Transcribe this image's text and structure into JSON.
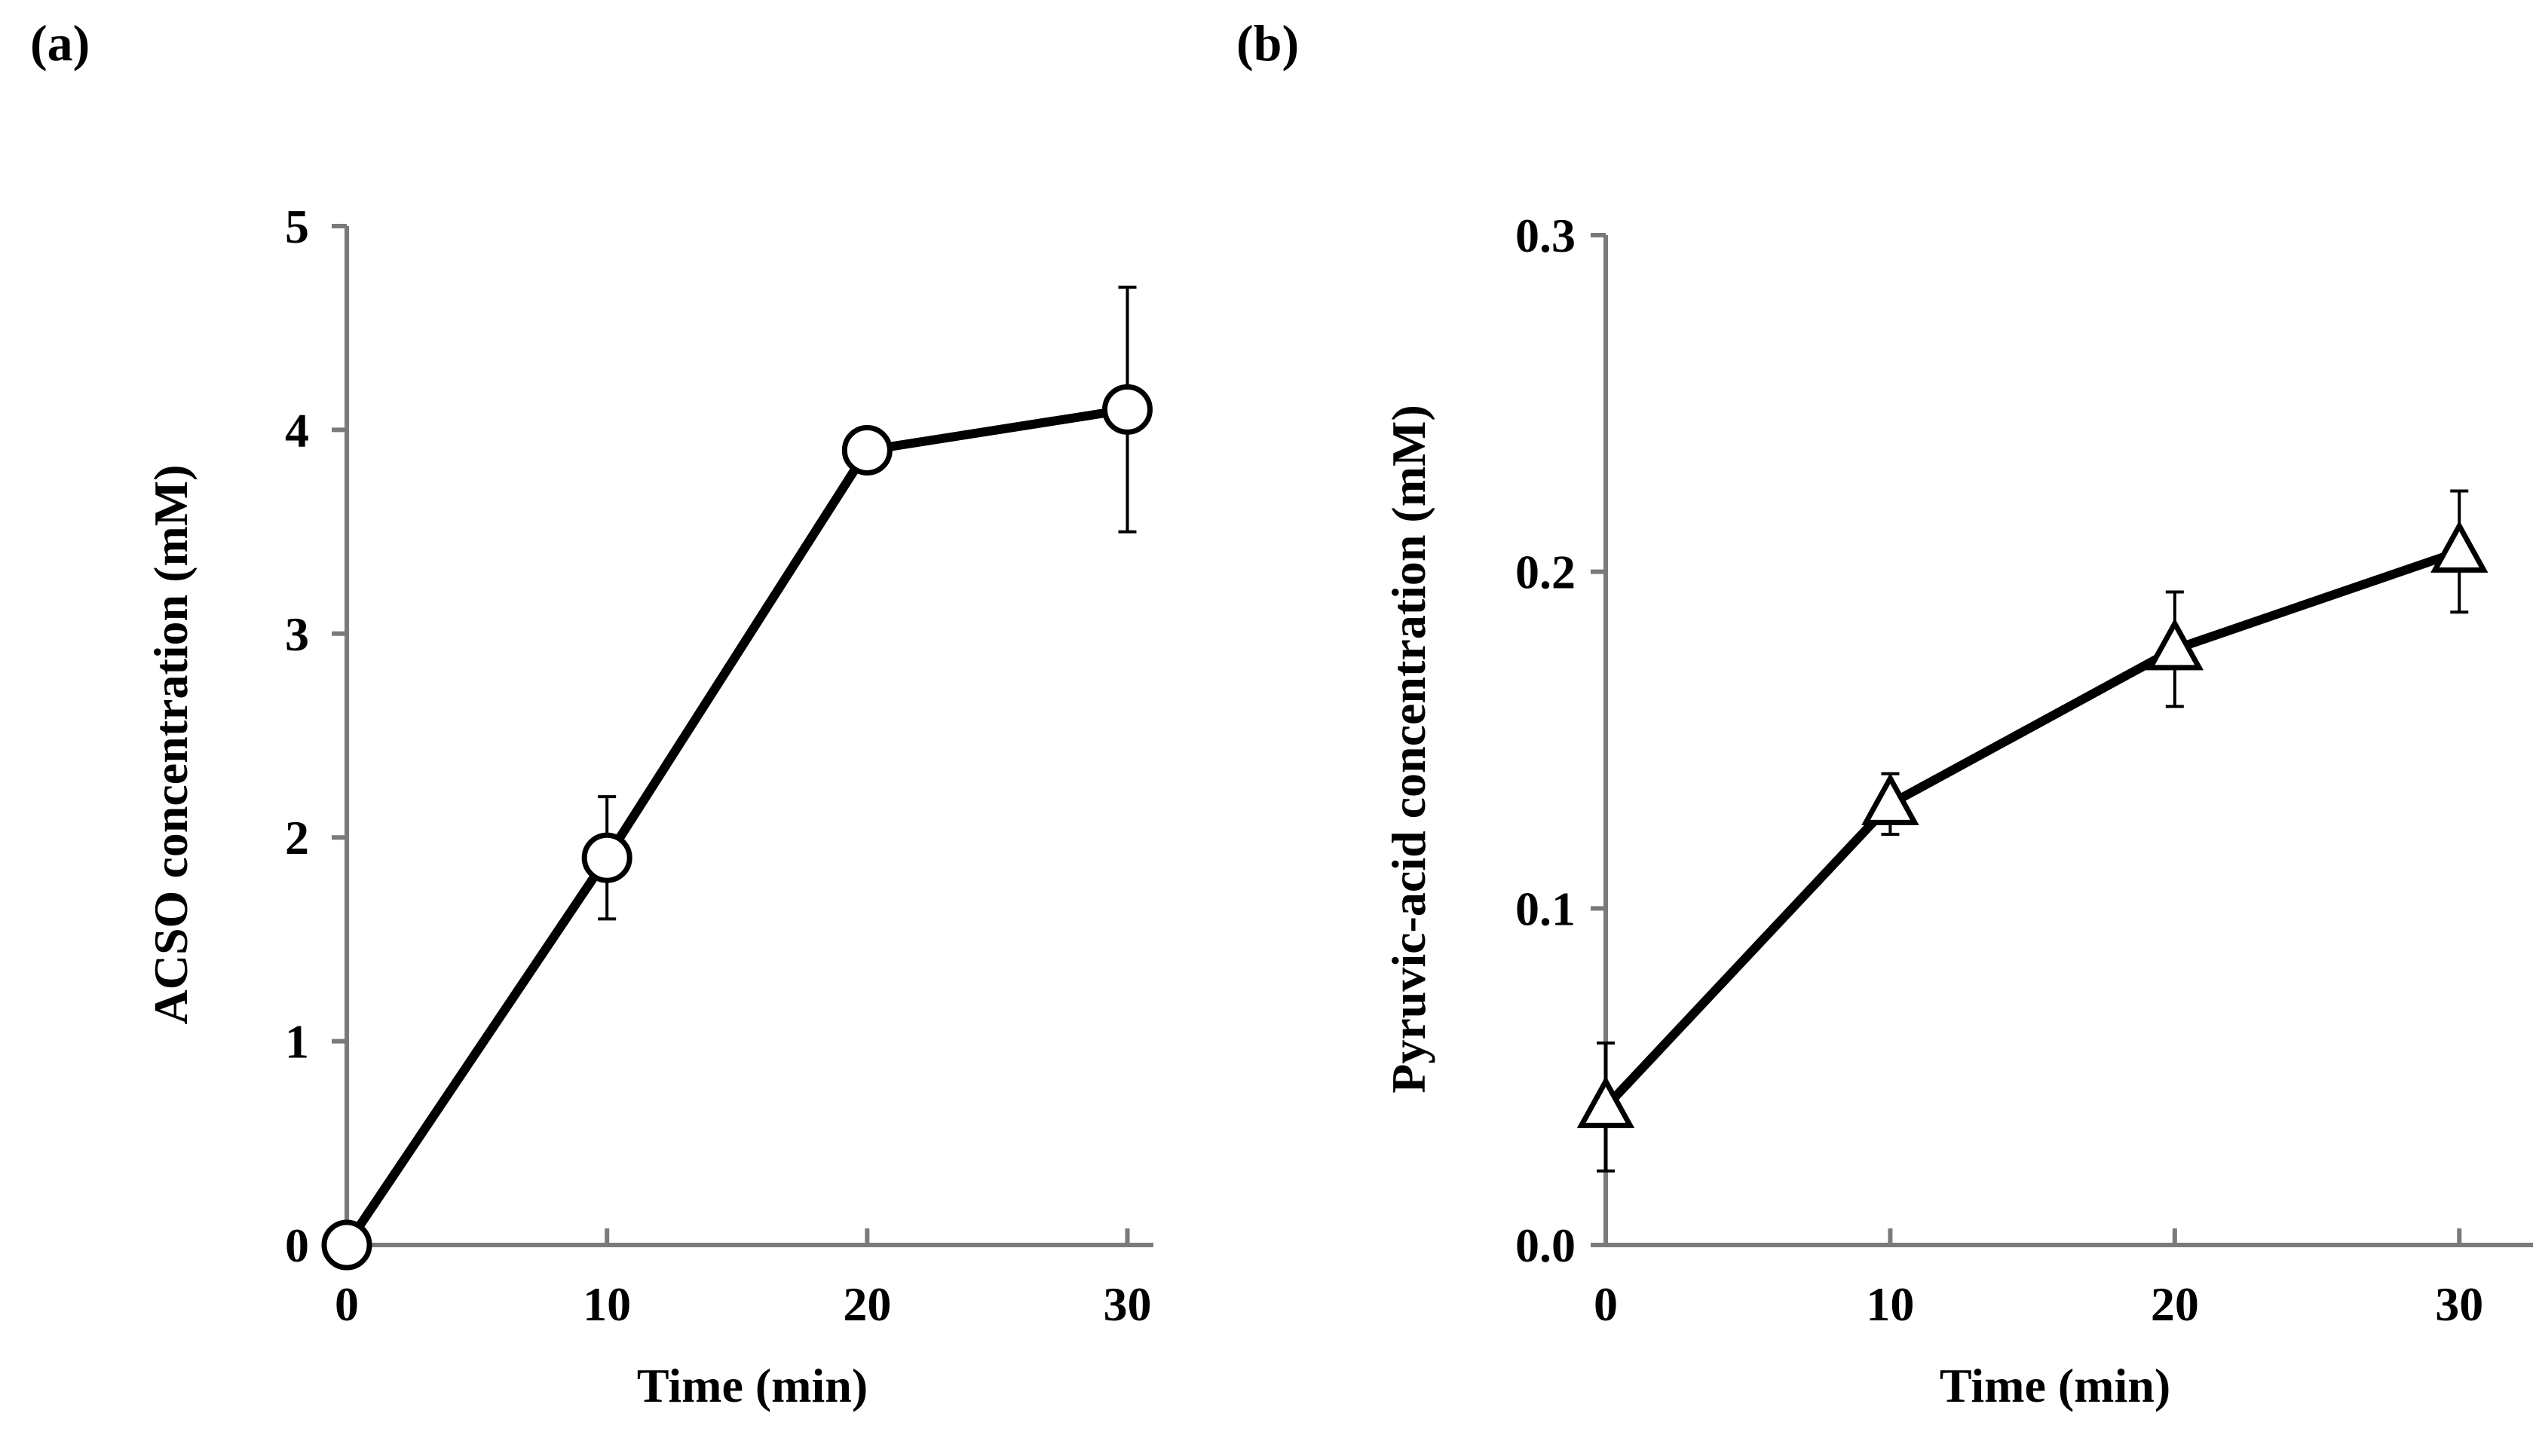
{
  "chart_data": [
    {
      "panel": "(a)",
      "type": "line",
      "title": "",
      "xlabel": "Time (min)",
      "ylabel": "ACSO concentration (mM)",
      "x": [
        0,
        10,
        20,
        30
      ],
      "xticks": [
        "0",
        "10",
        "20",
        "30"
      ],
      "yticks": [
        "0",
        "1",
        "2",
        "3",
        "4",
        "5"
      ],
      "xlim": [
        0,
        31
      ],
      "ylim": [
        0,
        5
      ],
      "marker": "circle",
      "series": [
        {
          "name": "ACSO",
          "values": [
            0,
            1.9,
            3.9,
            4.1
          ],
          "error": [
            0,
            0.3,
            0,
            0.6
          ]
        }
      ],
      "legend": "none",
      "grid": false
    },
    {
      "panel": "(b)",
      "type": "line",
      "title": "",
      "xlabel": "Time (min)",
      "ylabel": "Pyruvic-acid concentration (mM)",
      "x": [
        0,
        10,
        20,
        30
      ],
      "xticks": [
        "0",
        "10",
        "20",
        "30"
      ],
      "yticks": [
        "0.0",
        "0.1",
        "0.2",
        "0.3"
      ],
      "xlim": [
        0,
        31
      ],
      "ylim": [
        0,
        0.3
      ],
      "marker": "triangle",
      "series": [
        {
          "name": "Pyruvic acid",
          "values": [
            0.041,
            0.131,
            0.177,
            0.206
          ],
          "error": [
            0.019,
            0.009,
            0.017,
            0.018
          ]
        }
      ],
      "legend": "none",
      "grid": false
    }
  ]
}
